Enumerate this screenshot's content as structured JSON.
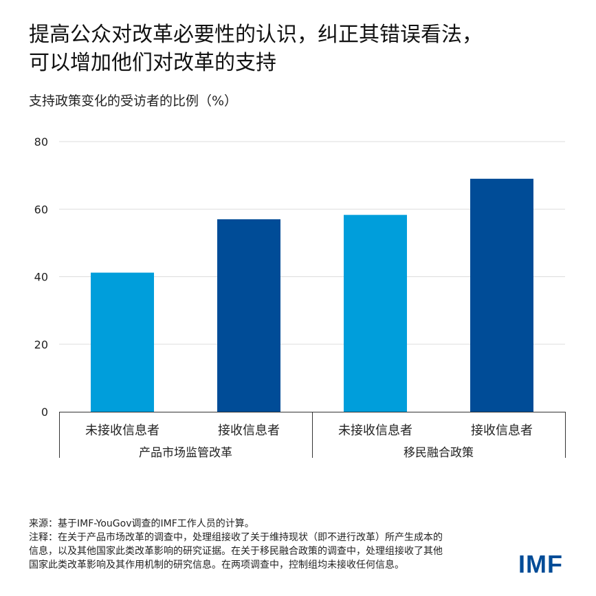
{
  "title_lines": [
    "提高公众对改革必要性的认识，纠正其错误看法，",
    "可以增加他们对改革的支持"
  ],
  "subtitle": "支持政策变化的受访者的比例（%）",
  "chart_data": {
    "type": "bar",
    "title": "提高公众对改革必要性的认识，纠正其错误看法，可以增加他们对改革的支持",
    "ylabel": "支持政策变化的受访者的比例（%）",
    "ylim": [
      0,
      80
    ],
    "yticks": [
      0,
      20,
      40,
      60,
      80
    ],
    "grid": true,
    "groups": [
      {
        "name": "产品市场监管改革",
        "bars": [
          {
            "label": "未接收信息者",
            "value": 41.2,
            "color": "#009EDB"
          },
          {
            "label": "接收信息者",
            "value": 57,
            "color": "#004C97"
          }
        ]
      },
      {
        "name": "移民融合政策",
        "bars": [
          {
            "label": "未接收信息者",
            "value": 58.3,
            "color": "#009EDB"
          },
          {
            "label": "接收信息者",
            "value": 69,
            "color": "#004C97"
          }
        ]
      }
    ]
  },
  "footnotes": [
    "来源：基于IMF-YouGov调查的IMF工作人员的计算。",
    "注释：在关于产品市场改革的调查中，处理组接收了关于维持现状（即不进行改革）所产生成本的",
    "信息，以及其他国家此类改革影响的研究证据。在关于移民融合政策的调查中，处理组接收了其他",
    "国家此类改革影响及其作用机制的研究信息。在两项调查中，控制组均未接收任何信息。"
  ],
  "logo_text": "IMF"
}
